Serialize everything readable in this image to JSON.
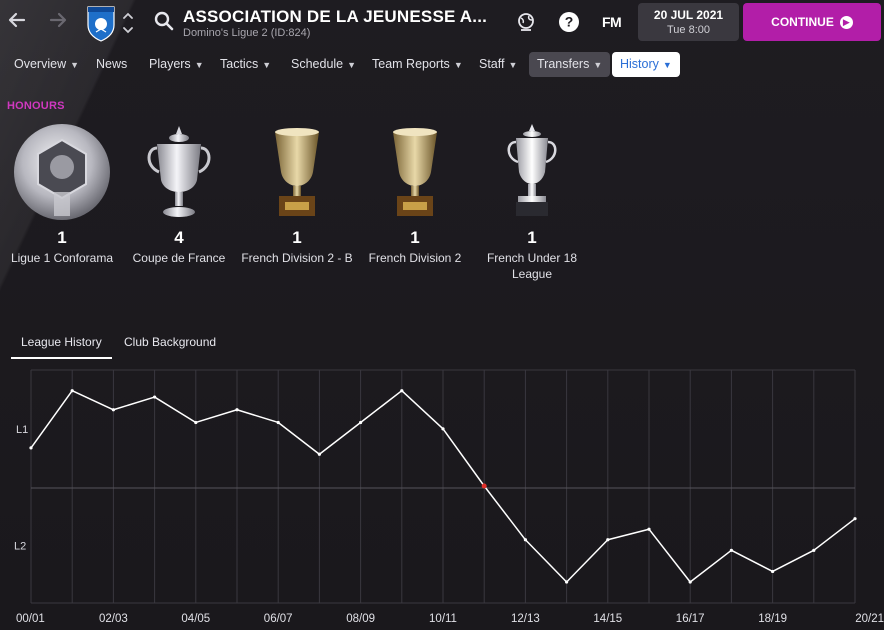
{
  "header": {
    "title": "ASSOCIATION DE LA JEUNESSE A...",
    "subtitle": "Domino's Ligue 2 (ID:824)",
    "fm_logo": "FM",
    "date": "20 JUL 2021",
    "time": "Tue 8:00",
    "continue_label": "CONTINUE",
    "icons": {
      "back": "arrow-left-icon",
      "forward": "arrow-right-icon",
      "search": "search-icon",
      "world": "globe-icon",
      "help": "help-icon",
      "continue": "chevron-right-circle-icon"
    },
    "accent_color": "#b21ea8"
  },
  "tabs": [
    {
      "label": "Overview",
      "dropdown": true
    },
    {
      "label": "News",
      "dropdown": false
    },
    {
      "label": "Players",
      "dropdown": true
    },
    {
      "label": "Tactics",
      "dropdown": true
    },
    {
      "label": "Schedule",
      "dropdown": true
    },
    {
      "label": "Team Reports",
      "dropdown": true
    },
    {
      "label": "Staff",
      "dropdown": true
    },
    {
      "label": "Transfers",
      "dropdown": true
    },
    {
      "label": "History",
      "dropdown": true
    }
  ],
  "honours": {
    "label": "HONOURS",
    "label_color": "#d038c0",
    "items": [
      {
        "count": "1",
        "name": "Ligue 1 Conforama"
      },
      {
        "count": "4",
        "name": "Coupe de France"
      },
      {
        "count": "1",
        "name": "French Division 2 - B"
      },
      {
        "count": "1",
        "name": "French Division 2"
      },
      {
        "count": "1",
        "name": "French Under 18 League"
      }
    ]
  },
  "subtabs": [
    {
      "label": "League History",
      "active": true
    },
    {
      "label": "Club Background",
      "active": false
    }
  ],
  "chart_data": {
    "type": "line",
    "title": "",
    "xlabel": "",
    "ylabel": "",
    "y_categories": [
      "L1",
      "L2"
    ],
    "x_tick_labels": [
      "00/01",
      "02/03",
      "04/05",
      "06/07",
      "08/09",
      "10/11",
      "12/13",
      "14/15",
      "16/17",
      "18/19",
      "20/21"
    ],
    "x": [
      "00/01",
      "01/02",
      "02/03",
      "03/04",
      "04/05",
      "05/06",
      "06/07",
      "07/08",
      "08/09",
      "09/10",
      "10/11",
      "11/12",
      "12/13",
      "13/14",
      "14/15",
      "15/16",
      "16/17",
      "17/18",
      "18/19",
      "19/20",
      "20/21"
    ],
    "series": [
      {
        "values": [
          {
            "league": "L1",
            "position": 12
          },
          {
            "league": "L1",
            "position": 3
          },
          {
            "league": "L1",
            "position": 6
          },
          {
            "league": "L1",
            "position": 4
          },
          {
            "league": "L1",
            "position": 8
          },
          {
            "league": "L1",
            "position": 6
          },
          {
            "league": "L1",
            "position": 8
          },
          {
            "league": "L1",
            "position": 13
          },
          {
            "league": "L1",
            "position": 8
          },
          {
            "league": "L1",
            "position": 3
          },
          {
            "league": "L1",
            "position": 9
          },
          {
            "league": "L2",
            "position": 0
          },
          {
            "league": "L2",
            "position": 5
          },
          {
            "league": "L2",
            "position": 9
          },
          {
            "league": "L2",
            "position": 5
          },
          {
            "league": "L2",
            "position": 4
          },
          {
            "league": "L2",
            "position": 9
          },
          {
            "league": "L2",
            "position": 6
          },
          {
            "league": "L2",
            "position": 8
          },
          {
            "league": "L2",
            "position": 6
          },
          {
            "league": "L2",
            "position": 3
          }
        ]
      }
    ],
    "grid": true,
    "line_color": "#ffffff",
    "relegation_marker_color": "#e0302a"
  }
}
